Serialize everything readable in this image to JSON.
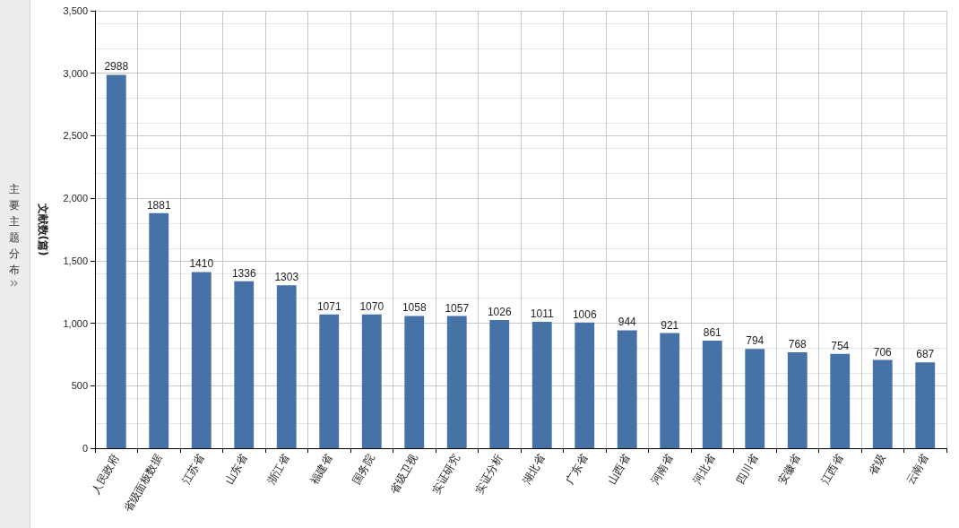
{
  "chart_data": {
    "type": "bar",
    "ylabel": "文献数(篇)",
    "annotations": [
      "主要主题分布"
    ],
    "categories": [
      "人民政府",
      "省级面板数据",
      "江苏省",
      "山东省",
      "浙江省",
      "福建省",
      "国务院",
      "省级卫视",
      "实证研究",
      "实证分析",
      "湖北省",
      "广东省",
      "山西省",
      "河南省",
      "河北省",
      "四川省",
      "安徽省",
      "江西省",
      "省级",
      "云南省"
    ],
    "values": [
      2988,
      1881,
      1410,
      1336,
      1303,
      1071,
      1070,
      1058,
      1057,
      1026,
      1011,
      1006,
      944,
      921,
      861,
      794,
      768,
      754,
      706,
      687
    ],
    "color": "#4672a8",
    "ylim": [
      0,
      3500
    ],
    "yticks": [
      0,
      500,
      {
        "value": 1000,
        "label": "1,000"
      },
      {
        "value": 1500,
        "label": "1,500"
      },
      {
        "value": 2000,
        "label": "2,000"
      },
      {
        "value": 2500,
        "label": "2,500"
      },
      {
        "value": 3000,
        "label": "3,000"
      },
      {
        "value": 3500,
        "label": "3,500"
      }
    ],
    "grid": true,
    "data_labels": true
  }
}
